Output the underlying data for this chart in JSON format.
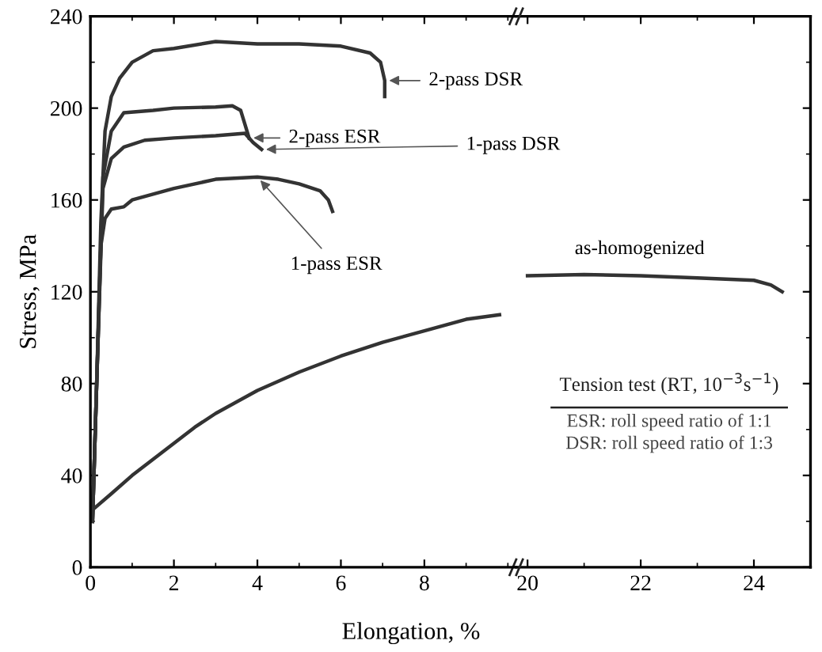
{
  "chart_data": [
    {
      "type": "line",
      "ylabel": "Stress, MPa",
      "xlabel": "Elongation, %",
      "xlim": [
        0,
        10.2
      ],
      "xticks": [
        0,
        2,
        4,
        6,
        8
      ],
      "ylim": [
        0,
        240
      ],
      "yticks": [
        0,
        40,
        80,
        120,
        160,
        200,
        240
      ],
      "grid": false,
      "legend": false,
      "marker": "none",
      "line_style": "solid",
      "tick_labels": "xy",
      "series": [
        {
          "name": "2-pass DSR",
          "color": "#333333",
          "x": [
            0.05,
            0.15,
            0.25,
            0.35,
            0.5,
            0.7,
            1,
            1.5,
            2,
            3,
            4,
            5,
            6,
            6.7,
            6.95,
            7.05,
            7.05
          ],
          "values": [
            20,
            80,
            150,
            190,
            205,
            213,
            220,
            225,
            226,
            229,
            228,
            228,
            227,
            224,
            220,
            212,
            205
          ]
        },
        {
          "name": "2-pass ESR",
          "color": "#333333",
          "x": [
            0.05,
            0.15,
            0.3,
            0.5,
            0.8,
            1.5,
            2,
            3,
            3.4,
            3.6,
            3.7,
            3.8
          ],
          "values": [
            20,
            80,
            170,
            190,
            198,
            199,
            200,
            200.5,
            201,
            199,
            193,
            187
          ]
        },
        {
          "name": "1-pass DSR",
          "color": "#333333",
          "x": [
            0.05,
            0.15,
            0.3,
            0.5,
            0.8,
            1.3,
            2,
            3,
            3.7,
            3.9,
            4.1
          ],
          "values": [
            20,
            80,
            165,
            178,
            183,
            186,
            187,
            188,
            189,
            185,
            182
          ]
        },
        {
          "name": "1-pass ESR",
          "color": "#333333",
          "x": [
            0.05,
            0.15,
            0.25,
            0.35,
            0.5,
            0.8,
            1,
            2,
            3,
            4,
            4.5,
            5,
            5.5,
            5.7,
            5.8
          ],
          "values": [
            20,
            80,
            140,
            152,
            156,
            157,
            160,
            165,
            169,
            170,
            169,
            167,
            164,
            160,
            155
          ]
        },
        {
          "color": "#333333",
          "x": [
            0,
            0.05,
            0.5,
            1,
            1.5,
            2,
            2.5,
            3,
            4,
            5,
            6,
            7,
            8,
            9,
            9.8
          ],
          "values": [
            22,
            25,
            32,
            40,
            47,
            54,
            61,
            67,
            77,
            85,
            92,
            98,
            103,
            108,
            110
          ]
        }
      ]
    },
    {
      "type": "line",
      "xlim": [
        19.8,
        25
      ],
      "xticks": [
        20,
        22,
        24
      ],
      "ylim": [
        0,
        240
      ],
      "yticks": [
        {
          "value": 0,
          "label": null
        },
        {
          "value": 40,
          "label": null
        },
        {
          "value": 80,
          "label": null
        },
        {
          "value": 120,
          "label": null
        },
        {
          "value": 160,
          "label": null
        },
        {
          "value": 200,
          "label": null
        },
        {
          "value": 240,
          "label": null
        }
      ],
      "grid": false,
      "legend": false,
      "marker": "none",
      "line_style": "solid",
      "tick_labels": "x",
      "series": [
        {
          "name": "as-homogenized",
          "color": "#333333",
          "x": [
            20,
            21,
            22,
            23,
            24,
            24.3,
            24.5
          ],
          "values": [
            127,
            127.5,
            127,
            126,
            125,
            123,
            120
          ]
        }
      ],
      "annotations": [
        "Tension test (RT, 10$^{−3}$s$^{−1}$)",
        "ESR: roll speed ratio of 1:1",
        "DSR: roll speed ratio of 1:3"
      ]
    }
  ]
}
